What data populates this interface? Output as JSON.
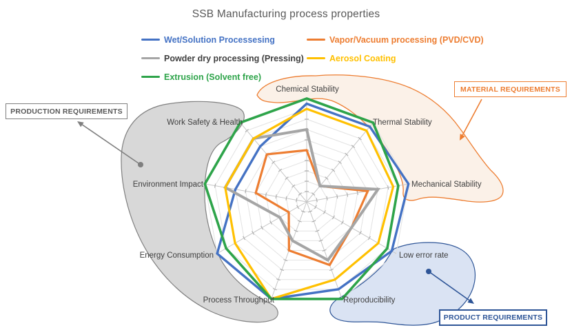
{
  "title": "SSB Manufacturing process properties",
  "colors": {
    "blue": "#4472C4",
    "orange": "#ED7D31",
    "gray": "#A5A5A5",
    "yellow": "#FFC000",
    "green": "#2EA44A",
    "title_text": "#595959",
    "axis_label_text": "#404040",
    "production_accent": "#7F7F7F",
    "production_text": "#595959",
    "material_accent": "#ED7D31",
    "product_accent": "#2E5597",
    "blob_gray_fill": "#D8D8D8",
    "blob_orange_fill": "#FBF1E8",
    "blob_blue_fill": "#DAE3F3"
  },
  "legend": {
    "columns": [
      {
        "items": [
          {
            "label": "Wet/Solution Processesing",
            "color": "#4472C4",
            "swatch": "#4472C4"
          },
          {
            "label": "Powder dry processing (Pressing)",
            "color": "#404040",
            "swatch": "#A5A5A5"
          },
          {
            "label": "Extrusion (Solvent free)",
            "color": "#2EA44A",
            "swatch": "#2EA44A"
          }
        ]
      },
      {
        "items": [
          {
            "label": "Vapor/Vacuum processing (PVD/CVD)",
            "color": "#ED7D31",
            "swatch": "#ED7D31"
          },
          {
            "label": "Aerosol Coating",
            "color": "#FFC000",
            "swatch": "#FFC000"
          }
        ]
      }
    ]
  },
  "chart_data": {
    "type": "radar",
    "title": "SSB Manufacturing process properties",
    "categories": [
      "Chemical Stability",
      "Thermal Stability",
      "Mechanical Stability",
      "Low error rate",
      "Reproducibility",
      "Process Throughput",
      "Energy Consumption",
      "Environment Impact",
      "Work Safety & Health"
    ],
    "scale": {
      "min": 0,
      "max": 10,
      "step": 1,
      "gridlines": true
    },
    "legend_position": "top",
    "series": [
      {
        "name": "Wet/Solution Processesing",
        "color": "#4472C4",
        "width": 3.4,
        "values": [
          9.5,
          9.5,
          10,
          9.5,
          9,
          10,
          10,
          7,
          7
        ]
      },
      {
        "name": "Vapor/Vacuum processing (PVD/CVD)",
        "color": "#ED7D31",
        "width": 3.2,
        "values": [
          5,
          2,
          6,
          5,
          6.5,
          5,
          2,
          5,
          6
        ]
      },
      {
        "name": "Powder dry processing (Pressing)",
        "color": "#A5A5A5",
        "width": 4,
        "values": [
          7,
          2,
          7,
          5,
          6,
          4,
          3,
          8,
          8
        ]
      },
      {
        "name": "Aerosol Coating",
        "color": "#FFC000",
        "width": 3.2,
        "values": [
          9,
          9,
          8.5,
          8,
          8,
          10,
          8,
          8,
          8
        ]
      },
      {
        "name": "Extrusion (Solvent free)",
        "color": "#2EA44A",
        "width": 3.6,
        "values": [
          10,
          10,
          9,
          9,
          10,
          10,
          9,
          10,
          10
        ]
      }
    ]
  },
  "annotations": {
    "production": {
      "label": "PRODUCTION REQUIREMENTS"
    },
    "material": {
      "label": "MATERIAL REQUIREMENTS"
    },
    "product": {
      "label": "PRODUCT REQUIREMENTS"
    }
  }
}
